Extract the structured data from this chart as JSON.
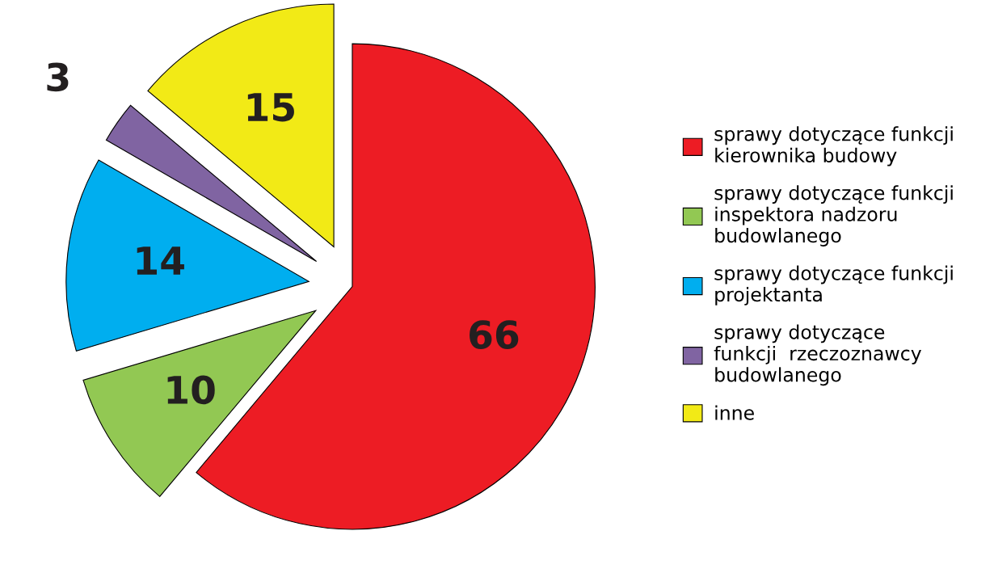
{
  "chart_data": {
    "type": "pie",
    "categories": [
      "sprawy dotyczące funkcji\nkierownika budowy",
      "sprawy dotyczące funkcji\ninspektora nadzoru\nbudowlanego",
      "sprawy dotyczące funkcji\nprojektanta",
      "sprawy dotyczące\nfunkcji  rzeczoznawcy\nbudowlanego",
      "inne"
    ],
    "values": [
      66,
      10,
      14,
      3,
      15
    ],
    "colors": [
      "#ed1c24",
      "#92c853",
      "#00aeef",
      "#8064a2",
      "#f2ea16"
    ],
    "data_labels": true,
    "legend": "right"
  }
}
